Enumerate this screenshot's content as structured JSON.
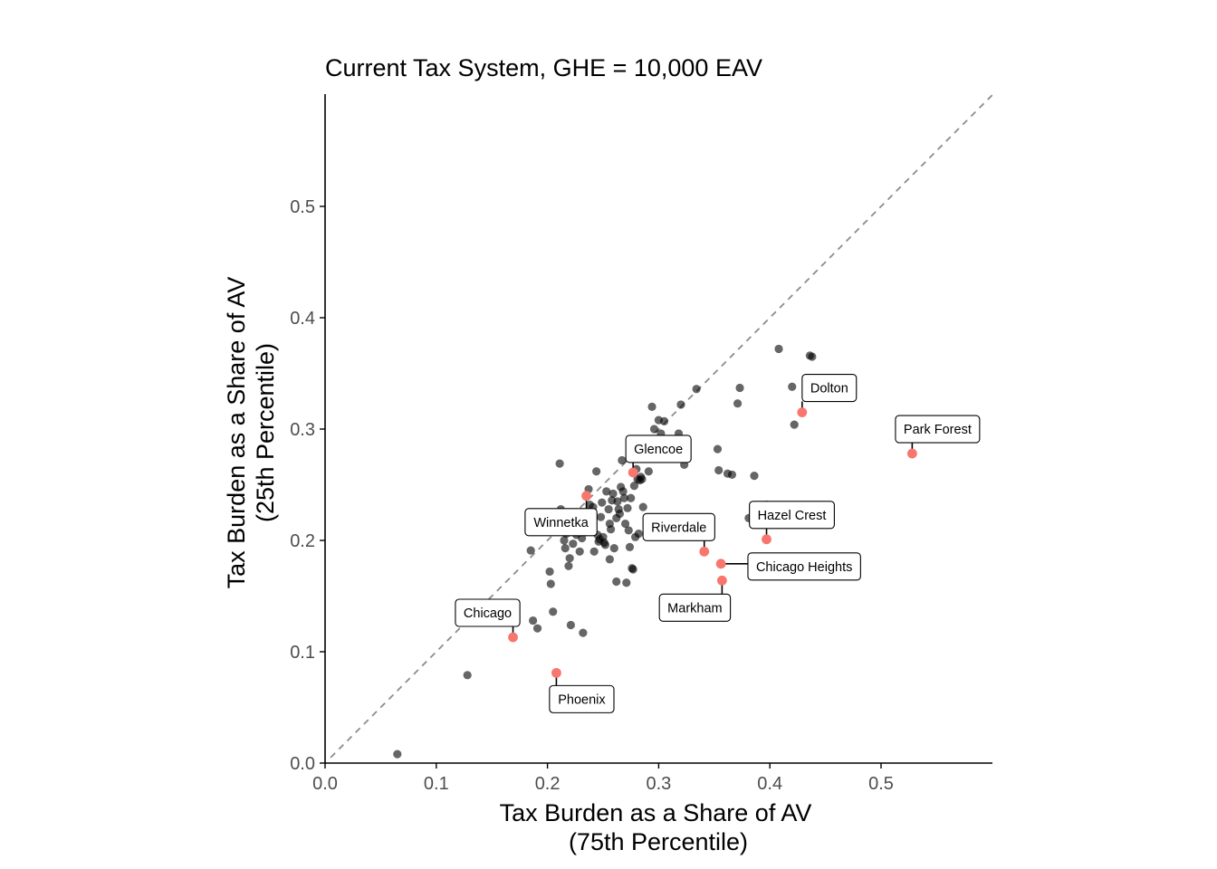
{
  "chart_data": {
    "type": "scatter",
    "title": "Current Tax System, GHE = 10,000 EAV",
    "xlabel": [
      "Tax Burden as a Share of AV",
      "(75th Percentile)"
    ],
    "ylabel": [
      "Tax Burden as a Share of AV",
      "(25th Percentile)"
    ],
    "xlim": [
      0,
      0.6
    ],
    "ylim": [
      0,
      0.6
    ],
    "x_ticks": [
      0.0,
      0.1,
      0.2,
      0.3,
      0.4,
      0.5
    ],
    "x_tick_labels": [
      "0.0",
      "0.1",
      "0.2",
      "0.3",
      "0.4",
      "0.5"
    ],
    "y_ticks": [
      0.0,
      0.1,
      0.2,
      0.3,
      0.4,
      0.5
    ],
    "y_tick_labels": [
      "0.0",
      "0.1",
      "0.2",
      "0.3",
      "0.4",
      "0.5"
    ],
    "grid": false,
    "reference_line": "y = x (dashed gray)",
    "colors": {
      "highlight": "#f8766d",
      "other": "#000000",
      "reference": "#8c8c8c"
    },
    "other_points": [
      [
        0.065,
        0.008
      ],
      [
        0.128,
        0.079
      ],
      [
        0.187,
        0.128
      ],
      [
        0.191,
        0.121
      ],
      [
        0.185,
        0.191
      ],
      [
        0.198,
        0.208
      ],
      [
        0.205,
        0.136
      ],
      [
        0.203,
        0.161
      ],
      [
        0.202,
        0.172
      ],
      [
        0.211,
        0.269
      ],
      [
        0.212,
        0.228
      ],
      [
        0.214,
        0.219
      ],
      [
        0.215,
        0.2
      ],
      [
        0.216,
        0.193
      ],
      [
        0.217,
        0.206
      ],
      [
        0.218,
        0.213
      ],
      [
        0.219,
        0.177
      ],
      [
        0.22,
        0.184
      ],
      [
        0.221,
        0.124
      ],
      [
        0.223,
        0.197
      ],
      [
        0.226,
        0.205
      ],
      [
        0.229,
        0.19
      ],
      [
        0.231,
        0.202
      ],
      [
        0.232,
        0.117
      ],
      [
        0.234,
        0.224
      ],
      [
        0.235,
        0.212
      ],
      [
        0.237,
        0.246
      ],
      [
        0.238,
        0.232
      ],
      [
        0.241,
        0.23
      ],
      [
        0.242,
        0.19
      ],
      [
        0.244,
        0.262
      ],
      [
        0.245,
        0.205
      ],
      [
        0.246,
        0.199
      ],
      [
        0.247,
        0.201
      ],
      [
        0.248,
        0.221
      ],
      [
        0.249,
        0.234
      ],
      [
        0.25,
        0.203
      ],
      [
        0.251,
        0.198
      ],
      [
        0.252,
        0.196
      ],
      [
        0.253,
        0.244
      ],
      [
        0.255,
        0.228
      ],
      [
        0.256,
        0.215
      ],
      [
        0.257,
        0.21
      ],
      [
        0.258,
        0.236
      ],
      [
        0.259,
        0.242
      ],
      [
        0.26,
        0.193
      ],
      [
        0.262,
        0.22
      ],
      [
        0.263,
        0.235
      ],
      [
        0.264,
        0.228
      ],
      [
        0.265,
        0.224
      ],
      [
        0.266,
        0.248
      ],
      [
        0.267,
        0.272
      ],
      [
        0.268,
        0.244
      ],
      [
        0.269,
        0.238
      ],
      [
        0.27,
        0.215
      ],
      [
        0.272,
        0.229
      ],
      [
        0.273,
        0.209
      ],
      [
        0.274,
        0.194
      ],
      [
        0.275,
        0.238
      ],
      [
        0.276,
        0.175
      ],
      [
        0.277,
        0.174
      ],
      [
        0.278,
        0.249
      ],
      [
        0.279,
        0.203
      ],
      [
        0.28,
        0.264
      ],
      [
        0.281,
        0.255
      ],
      [
        0.282,
        0.206
      ],
      [
        0.283,
        0.254
      ],
      [
        0.284,
        0.257
      ],
      [
        0.285,
        0.255
      ],
      [
        0.286,
        0.23
      ],
      [
        0.288,
        0.277
      ],
      [
        0.291,
        0.262
      ],
      [
        0.294,
        0.32
      ],
      [
        0.296,
        0.3
      ],
      [
        0.298,
        0.285
      ],
      [
        0.3,
        0.308
      ],
      [
        0.302,
        0.296
      ],
      [
        0.305,
        0.307
      ],
      [
        0.307,
        0.287
      ],
      [
        0.309,
        0.274
      ],
      [
        0.312,
        0.285
      ],
      [
        0.318,
        0.296
      ],
      [
        0.32,
        0.322
      ],
      [
        0.323,
        0.268
      ],
      [
        0.334,
        0.336
      ],
      [
        0.353,
        0.282
      ],
      [
        0.354,
        0.263
      ],
      [
        0.362,
        0.26
      ],
      [
        0.366,
        0.259
      ],
      [
        0.371,
        0.323
      ],
      [
        0.373,
        0.337
      ],
      [
        0.381,
        0.22
      ],
      [
        0.386,
        0.258
      ],
      [
        0.397,
        0.232
      ],
      [
        0.408,
        0.372
      ],
      [
        0.42,
        0.338
      ],
      [
        0.422,
        0.304
      ],
      [
        0.436,
        0.366
      ],
      [
        0.438,
        0.365
      ],
      [
        0.262,
        0.163
      ],
      [
        0.271,
        0.162
      ],
      [
        0.256,
        0.183
      ]
    ],
    "highlighted": [
      {
        "name": "Dolton",
        "x": 0.429,
        "y": 0.315
      },
      {
        "name": "Park Forest",
        "x": 0.528,
        "y": 0.278
      },
      {
        "name": "Glencoe",
        "x": 0.277,
        "y": 0.261
      },
      {
        "name": "Winnetka",
        "x": 0.235,
        "y": 0.24
      },
      {
        "name": "Hazel Crest",
        "x": 0.397,
        "y": 0.201
      },
      {
        "name": "Riverdale",
        "x": 0.341,
        "y": 0.19
      },
      {
        "name": "Chicago Heights",
        "x": 0.356,
        "y": 0.179
      },
      {
        "name": "Markham",
        "x": 0.357,
        "y": 0.164
      },
      {
        "name": "Chicago",
        "x": 0.169,
        "y": 0.113
      },
      {
        "name": "Phoenix",
        "x": 0.208,
        "y": 0.081
      }
    ]
  }
}
